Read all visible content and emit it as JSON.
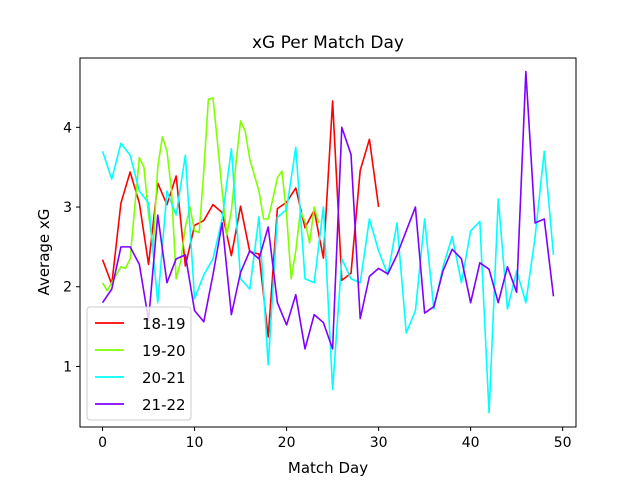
{
  "chart_data": {
    "type": "line",
    "title": "xG Per Match Day",
    "xlabel": "Match Day",
    "ylabel": "Average xG",
    "xlim": [
      -2.45,
      51.45
    ],
    "ylim": [
      0.24,
      4.87
    ],
    "xticks": [
      0,
      10,
      20,
      30,
      40,
      50
    ],
    "yticks": [
      1,
      2,
      3,
      4
    ],
    "grid": false,
    "legend_position": "lower-left",
    "series": [
      {
        "name": "18-19",
        "color": "#ff0000",
        "x": [
          0,
          1,
          2,
          3,
          4,
          5,
          6,
          7,
          8,
          9,
          10,
          11,
          12,
          13,
          14,
          15,
          16,
          17,
          18,
          19,
          20,
          21,
          22,
          23,
          24,
          25,
          26,
          27,
          28,
          29,
          30
        ],
        "y": [
          2.34,
          2.03,
          3.05,
          3.44,
          3.05,
          2.28,
          3.3,
          3.03,
          3.39,
          2.26,
          2.77,
          2.83,
          3.03,
          2.93,
          2.39,
          3.01,
          2.44,
          2.41,
          1.37,
          2.98,
          3.06,
          3.24,
          2.74,
          2.96,
          2.36,
          4.33,
          2.08,
          2.17,
          3.46,
          3.85,
          3.0
        ]
      },
      {
        "name": "19-20",
        "color": "#80ff00",
        "x": [
          0,
          0.5,
          1,
          1.5,
          2,
          2.5,
          3,
          3.5,
          4,
          4.5,
          5,
          5.5,
          6,
          6.5,
          7,
          7.5,
          8,
          8.5,
          9,
          9.5,
          10,
          10.5,
          11,
          11.5,
          12,
          12.5,
          13,
          13.5,
          14,
          14.5,
          15,
          15.5,
          16,
          16.5,
          17,
          17.5,
          18,
          18.5,
          19,
          19.5,
          20,
          20.5,
          21,
          21.5,
          22,
          22.5,
          23,
          23.5
        ],
        "y": [
          2.05,
          1.95,
          2.05,
          2.15,
          2.25,
          2.23,
          2.35,
          3.0,
          3.62,
          3.5,
          2.9,
          2.5,
          3.5,
          3.88,
          3.7,
          3.2,
          2.1,
          2.32,
          2.75,
          3.0,
          2.7,
          2.68,
          3.45,
          4.35,
          4.37,
          3.8,
          3.2,
          2.65,
          2.95,
          3.55,
          4.08,
          3.95,
          3.6,
          3.4,
          3.2,
          2.85,
          2.85,
          3.1,
          3.37,
          3.45,
          2.9,
          2.1,
          2.45,
          2.95,
          2.82,
          2.55,
          3.0,
          2.8
        ]
      },
      {
        "name": "20-21",
        "color": "#00ffff",
        "x": [
          0,
          1,
          2,
          3,
          4,
          5,
          6,
          7,
          8,
          9,
          10,
          11,
          12,
          13,
          14,
          15,
          16,
          17,
          18,
          19,
          20,
          21,
          22,
          23,
          24,
          25,
          26,
          27,
          28,
          29,
          30,
          31,
          32,
          33,
          34,
          35,
          36,
          37,
          38,
          39,
          40,
          41,
          42,
          43,
          44,
          45,
          46,
          47,
          48,
          49
        ],
        "y": [
          3.7,
          3.35,
          3.8,
          3.65,
          3.2,
          3.05,
          1.8,
          3.2,
          2.9,
          3.65,
          1.85,
          2.15,
          2.35,
          2.85,
          3.73,
          2.1,
          1.97,
          2.88,
          1.02,
          2.87,
          2.97,
          3.75,
          2.1,
          2.05,
          3.0,
          0.71,
          2.35,
          2.1,
          2.05,
          2.85,
          2.45,
          2.15,
          2.8,
          1.42,
          1.7,
          2.85,
          1.72,
          2.25,
          2.63,
          2.05,
          2.7,
          2.82,
          0.42,
          3.1,
          1.72,
          2.2,
          1.8,
          2.62,
          3.7,
          2.4
        ]
      },
      {
        "name": "21-22",
        "color": "#8000ff",
        "x": [
          0,
          1,
          2,
          3,
          4,
          5,
          6,
          7,
          8,
          9,
          10,
          11,
          12,
          13,
          14,
          15,
          16,
          17,
          18,
          19,
          20,
          21,
          22,
          23,
          24,
          25,
          26,
          27,
          28,
          29,
          30,
          31,
          32,
          33,
          34,
          35,
          36,
          37,
          38,
          39,
          40,
          41,
          42,
          43,
          44,
          45,
          46,
          47,
          48,
          49
        ],
        "y": [
          1.8,
          1.97,
          2.5,
          2.5,
          2.28,
          1.58,
          2.9,
          2.05,
          2.35,
          2.4,
          1.7,
          1.56,
          2.15,
          2.8,
          1.65,
          2.18,
          2.45,
          2.35,
          2.75,
          1.8,
          1.52,
          1.9,
          1.22,
          1.65,
          1.55,
          1.22,
          4.0,
          3.66,
          1.6,
          2.13,
          2.23,
          2.16,
          2.4,
          2.7,
          3.0,
          1.67,
          1.75,
          2.2,
          2.47,
          2.35,
          1.8,
          2.3,
          2.22,
          1.8,
          2.25,
          1.93,
          4.7,
          2.8,
          2.85,
          1.88
        ]
      }
    ]
  }
}
